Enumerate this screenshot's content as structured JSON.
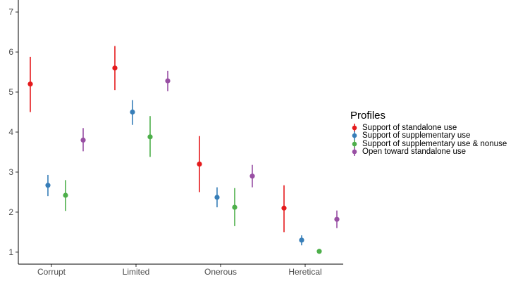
{
  "chart_data": {
    "type": "scatter",
    "subtype": "point-range",
    "categories": [
      "Corrupt",
      "Limited",
      "Onerous",
      "Heretical"
    ],
    "ylim": [
      0.7,
      7.3
    ],
    "yticks": [
      1,
      2,
      3,
      4,
      5,
      6,
      7
    ],
    "grid": false,
    "legend_position": "right",
    "legend_title": "Profiles",
    "series": [
      {
        "name": "Support of standalone use",
        "color": "#e41a1c",
        "values": [
          5.2,
          5.6,
          3.2,
          2.1
        ],
        "lower": [
          4.5,
          5.05,
          2.5,
          1.5
        ],
        "upper": [
          5.88,
          6.15,
          3.9,
          2.67
        ]
      },
      {
        "name": "Support of supplementary use",
        "color": "#377eb8",
        "values": [
          2.67,
          4.5,
          2.37,
          1.3
        ],
        "lower": [
          2.4,
          4.18,
          2.12,
          1.17
        ],
        "upper": [
          2.93,
          4.8,
          2.62,
          1.42
        ]
      },
      {
        "name": "Support of supplementary use & nonuse",
        "color": "#4daf4a",
        "values": [
          2.42,
          3.88,
          2.12,
          1.02
        ],
        "lower": [
          2.03,
          3.38,
          1.65,
          0.97
        ],
        "upper": [
          2.8,
          4.4,
          2.6,
          1.07
        ]
      },
      {
        "name": "Open toward standalone use",
        "color": "#984ea3",
        "values": [
          3.8,
          5.28,
          2.9,
          1.82
        ],
        "lower": [
          3.52,
          5.02,
          2.62,
          1.6
        ],
        "upper": [
          4.1,
          5.53,
          3.18,
          2.04
        ]
      }
    ]
  }
}
